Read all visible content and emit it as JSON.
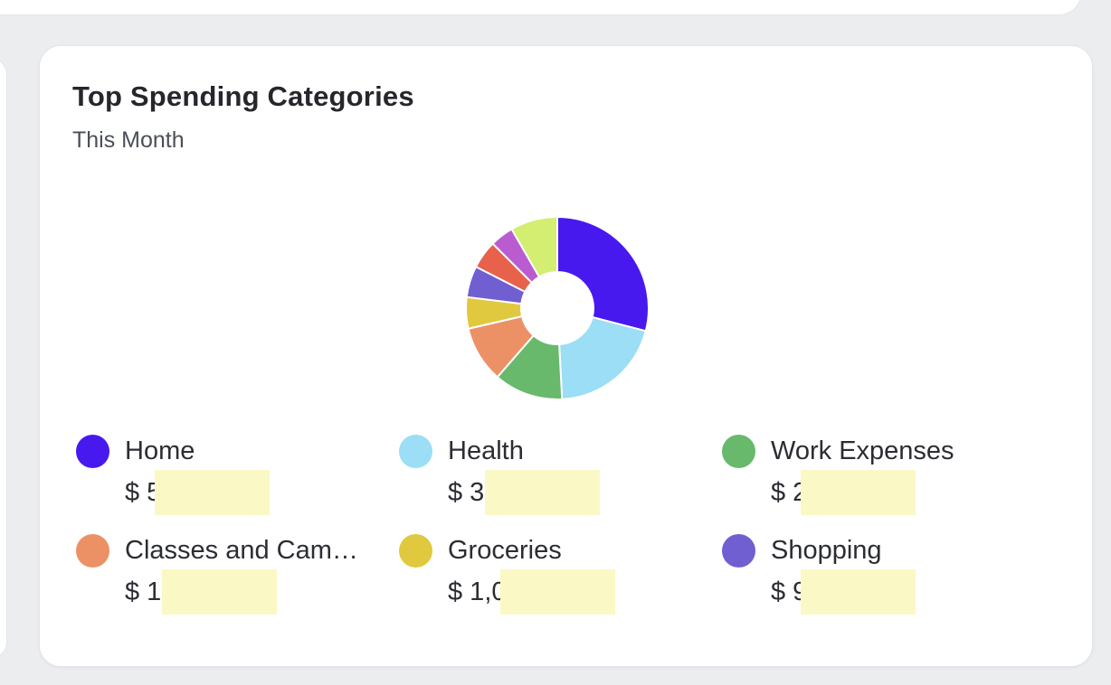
{
  "page": {
    "background_color": "#ecedef",
    "card_background": "#ffffff",
    "card_border_color": "#e3e5e9"
  },
  "card": {
    "title": "Top Spending Categories",
    "subtitle": "This Month"
  },
  "chart_data": {
    "type": "pie",
    "donut": true,
    "title": "Top Spending Categories",
    "subtitle": "This Month",
    "start_angle_deg": 0,
    "direction": "clockwise",
    "inner_radius_ratio": 0.4,
    "separator_color": "#ffffff",
    "redaction_color": "#faf8c5",
    "legend_position": "bottom",
    "segments": [
      {
        "label": "Home",
        "color": "#4719ef",
        "sweep_deg": 104.5,
        "percent_est": 29.0,
        "amount_prefix": "$ 5",
        "amount_redacted": true,
        "in_legend": true
      },
      {
        "label": "Health",
        "color": "#9bdef5",
        "sweep_deg": 72.5,
        "percent_est": 20.1,
        "amount_prefix": "$ 3,",
        "amount_redacted": true,
        "in_legend": true
      },
      {
        "label": "Work Expenses",
        "color": "#68b96c",
        "sweep_deg": 44,
        "percent_est": 12.2,
        "amount_prefix": "$ 2",
        "amount_redacted": true,
        "in_legend": true
      },
      {
        "label": "Classes and Cam…",
        "color": "#ec9166",
        "sweep_deg": 36,
        "percent_est": 10.0,
        "amount_prefix": "$ 1,",
        "amount_redacted": true,
        "in_legend": true
      },
      {
        "label": "Groceries",
        "color": "#e0c93f",
        "sweep_deg": 20,
        "percent_est": 5.6,
        "amount_prefix": "$ 1,0",
        "amount_redacted": true,
        "in_legend": true
      },
      {
        "label": "Shopping",
        "color": "#6f5fd1",
        "sweep_deg": 20,
        "percent_est": 5.6,
        "amount_prefix": "$ 9",
        "amount_redacted": true,
        "in_legend": true
      },
      {
        "label": "",
        "color": "#e7614b",
        "sweep_deg": 18,
        "percent_est": 5.0,
        "amount_prefix": "",
        "amount_redacted": false,
        "in_legend": false
      },
      {
        "label": "",
        "color": "#ba5bd0",
        "sweep_deg": 15,
        "percent_est": 4.2,
        "amount_prefix": "",
        "amount_redacted": false,
        "in_legend": false
      },
      {
        "label": "",
        "color": "#d3ee70",
        "sweep_deg": 30,
        "percent_est": 8.3,
        "amount_prefix": "",
        "amount_redacted": false,
        "in_legend": false
      }
    ]
  }
}
